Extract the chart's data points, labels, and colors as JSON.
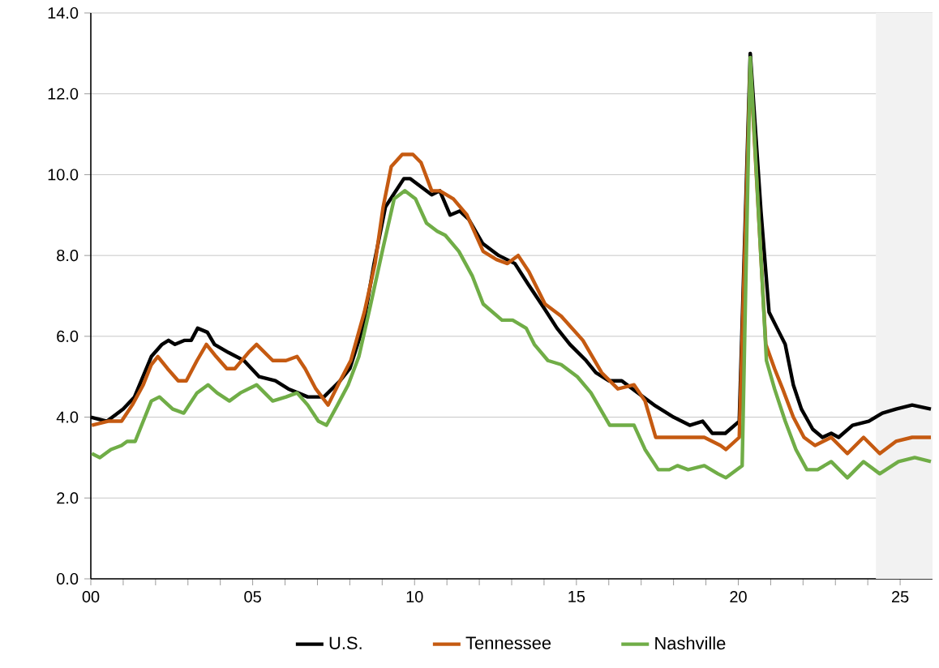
{
  "chart_data": {
    "type": "line",
    "xlim": [
      0,
      26
    ],
    "ylim": [
      0,
      14
    ],
    "xticks": [
      {
        "value": 0,
        "label": "00"
      },
      {
        "value": 5,
        "label": "05"
      },
      10,
      15,
      20,
      25
    ],
    "yticks": [
      {
        "value": 0,
        "label": "0.0"
      },
      {
        "value": 2,
        "label": "2.0"
      },
      {
        "value": 4,
        "label": "4.0"
      },
      {
        "value": 6,
        "label": "6.0"
      },
      {
        "value": 8,
        "label": "8.0"
      },
      {
        "value": 10,
        "label": "10.0"
      },
      {
        "value": 12,
        "label": "12.0"
      },
      {
        "value": 14,
        "label": "14.0"
      }
    ],
    "grid": "y",
    "legend": "bottom",
    "bands": [
      {
        "axis": "x",
        "from": 24.25,
        "to": 26,
        "color": "#f2f2f2"
      }
    ],
    "series": [
      {
        "name": "U.S.",
        "color": "#000000",
        "x": [
          0,
          0.5,
          1.0,
          1.35,
          1.87,
          2.2,
          2.4,
          2.6,
          2.9,
          3.1,
          3.3,
          3.6,
          3.82,
          4.25,
          4.73,
          5.2,
          5.7,
          6.1,
          6.4,
          6.7,
          7.2,
          7.7,
          8.0,
          8.4,
          8.75,
          9.1,
          9.67,
          9.87,
          10.53,
          10.78,
          11.1,
          11.4,
          11.67,
          12.1,
          12.6,
          13.1,
          13.5,
          14.0,
          14.4,
          14.8,
          15.3,
          15.6,
          16.0,
          16.4,
          16.9,
          17.4,
          18.0,
          18.5,
          18.9,
          19.2,
          19.6,
          20.03,
          20.37,
          20.7,
          20.95,
          21.2,
          21.45,
          21.7,
          21.95,
          22.3,
          22.6,
          22.87,
          23.1,
          23.53,
          24.03,
          24.45,
          24.87,
          25.37,
          25.95
        ],
        "values": [
          4.0,
          3.9,
          4.2,
          4.5,
          5.5,
          5.8,
          5.9,
          5.8,
          5.9,
          5.9,
          6.2,
          6.1,
          5.8,
          5.6,
          5.4,
          5.0,
          4.9,
          4.7,
          4.6,
          4.5,
          4.5,
          4.9,
          5.2,
          6.2,
          7.8,
          9.2,
          9.9,
          9.9,
          9.5,
          9.6,
          9.0,
          9.1,
          8.9,
          8.3,
          8.0,
          7.8,
          7.3,
          6.7,
          6.2,
          5.8,
          5.4,
          5.1,
          4.9,
          4.9,
          4.6,
          4.3,
          4.0,
          3.8,
          3.9,
          3.6,
          3.6,
          3.9,
          13.0,
          9.1,
          6.6,
          6.2,
          5.8,
          4.8,
          4.2,
          3.7,
          3.5,
          3.6,
          3.5,
          3.8,
          3.9,
          4.1,
          4.2,
          4.3,
          4.2
        ]
      },
      {
        "name": "Tennessee",
        "color": "#c55a11",
        "x": [
          0.03,
          0.53,
          0.95,
          1.28,
          1.62,
          1.87,
          2.07,
          2.37,
          2.7,
          2.95,
          3.28,
          3.57,
          3.87,
          4.2,
          4.45,
          4.87,
          5.12,
          5.62,
          6.03,
          6.37,
          6.62,
          6.95,
          7.33,
          7.7,
          8.03,
          8.45,
          8.78,
          9.03,
          9.28,
          9.62,
          9.95,
          10.2,
          10.53,
          10.78,
          11.2,
          11.62,
          12.12,
          12.53,
          12.87,
          13.2,
          13.53,
          14.03,
          14.53,
          15.2,
          15.78,
          16.28,
          16.78,
          17.12,
          17.45,
          17.87,
          18.2,
          18.95,
          19.45,
          19.62,
          20.03,
          20.37,
          20.85,
          21.12,
          21.37,
          21.7,
          22.03,
          22.37,
          22.87,
          23.37,
          23.87,
          24.37,
          24.87,
          25.37,
          25.95
        ],
        "values": [
          3.8,
          3.9,
          3.9,
          4.3,
          4.8,
          5.3,
          5.5,
          5.2,
          4.9,
          4.9,
          5.4,
          5.8,
          5.5,
          5.2,
          5.2,
          5.6,
          5.8,
          5.4,
          5.4,
          5.5,
          5.2,
          4.7,
          4.3,
          4.9,
          5.4,
          6.6,
          7.8,
          9.2,
          10.2,
          10.5,
          10.5,
          10.3,
          9.6,
          9.6,
          9.4,
          9.0,
          8.1,
          7.9,
          7.8,
          8.0,
          7.6,
          6.8,
          6.5,
          5.9,
          5.1,
          4.7,
          4.8,
          4.4,
          3.5,
          3.5,
          3.5,
          3.5,
          3.3,
          3.2,
          3.5,
          12.7,
          5.8,
          5.2,
          4.7,
          4.0,
          3.5,
          3.3,
          3.5,
          3.1,
          3.5,
          3.1,
          3.4,
          3.5,
          3.5
        ]
      },
      {
        "name": "Nashville",
        "color": "#70ad47",
        "x": [
          0.03,
          0.28,
          0.62,
          0.95,
          1.12,
          1.37,
          1.62,
          1.87,
          2.12,
          2.53,
          2.87,
          3.28,
          3.62,
          3.9,
          4.28,
          4.62,
          5.12,
          5.62,
          6.03,
          6.37,
          6.7,
          7.03,
          7.28,
          7.62,
          7.95,
          8.28,
          8.62,
          9.03,
          9.37,
          9.7,
          10.03,
          10.37,
          10.7,
          10.95,
          11.37,
          11.78,
          12.12,
          12.7,
          13.03,
          13.45,
          13.7,
          14.12,
          14.53,
          15.03,
          15.45,
          16.03,
          16.37,
          16.78,
          17.12,
          17.53,
          17.87,
          18.12,
          18.45,
          18.95,
          19.37,
          19.62,
          20.12,
          20.37,
          20.87,
          21.12,
          21.45,
          21.78,
          22.12,
          22.45,
          22.87,
          23.37,
          23.87,
          24.37,
          24.95,
          25.45,
          25.95
        ],
        "values": [
          3.1,
          3.0,
          3.2,
          3.3,
          3.4,
          3.4,
          3.9,
          4.4,
          4.5,
          4.2,
          4.1,
          4.6,
          4.8,
          4.6,
          4.4,
          4.6,
          4.8,
          4.4,
          4.5,
          4.6,
          4.3,
          3.9,
          3.8,
          4.3,
          4.8,
          5.5,
          6.7,
          8.2,
          9.4,
          9.6,
          9.4,
          8.8,
          8.6,
          8.5,
          8.1,
          7.5,
          6.8,
          6.4,
          6.4,
          6.2,
          5.8,
          5.4,
          5.3,
          5.0,
          4.6,
          3.8,
          3.8,
          3.8,
          3.2,
          2.7,
          2.7,
          2.8,
          2.7,
          2.8,
          2.6,
          2.5,
          2.8,
          12.9,
          5.4,
          4.7,
          3.9,
          3.2,
          2.7,
          2.7,
          2.9,
          2.5,
          2.9,
          2.6,
          2.9,
          3.0,
          2.9
        ]
      }
    ]
  }
}
